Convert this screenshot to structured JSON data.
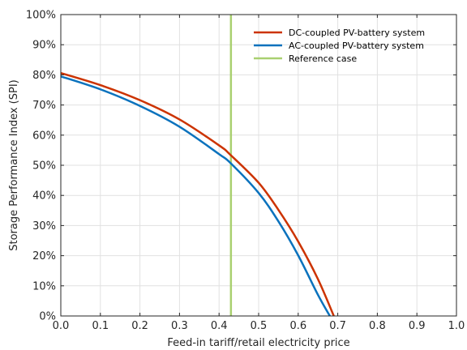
{
  "chart_data": {
    "type": "line",
    "xlabel": "Feed-in tariff/retail electricity price",
    "ylabel": "Storage Performance Index (SPI)",
    "xlim": [
      0,
      1
    ],
    "ylim": [
      0,
      1
    ],
    "x_ticks": [
      0,
      0.1,
      0.2,
      0.3,
      0.4,
      0.5,
      0.6,
      0.7,
      0.8,
      0.9,
      1.0
    ],
    "x_tick_labels": [
      "0.0",
      "0.1",
      "0.2",
      "0.3",
      "0.4",
      "0.5",
      "0.6",
      "0.7",
      "0.8",
      "0.9",
      "1.0"
    ],
    "y_ticks": [
      0,
      0.1,
      0.2,
      0.3,
      0.4,
      0.5,
      0.6,
      0.7,
      0.8,
      0.9,
      1.0
    ],
    "y_tick_labels": [
      "0%",
      "10%",
      "20%",
      "30%",
      "40%",
      "50%",
      "60%",
      "70%",
      "80%",
      "90%",
      "100%"
    ],
    "grid": true,
    "legend_position": "top-right",
    "series": [
      {
        "name": "DC-coupled PV-battery system",
        "color": "#cc3300",
        "x": [
          0.0,
          0.1,
          0.2,
          0.3,
          0.4,
          0.43,
          0.5,
          0.55,
          0.6,
          0.65,
          0.69
        ],
        "y": [
          0.806,
          0.766,
          0.716,
          0.652,
          0.566,
          0.533,
          0.442,
          0.352,
          0.247,
          0.122,
          0.0
        ]
      },
      {
        "name": "AC-coupled PV-battery system",
        "color": "#0b72bd",
        "x": [
          0.0,
          0.1,
          0.2,
          0.3,
          0.4,
          0.43,
          0.5,
          0.55,
          0.6,
          0.65,
          0.68
        ],
        "y": [
          0.795,
          0.752,
          0.697,
          0.628,
          0.537,
          0.506,
          0.408,
          0.314,
          0.201,
          0.07,
          0.0
        ]
      },
      {
        "name": "Reference case",
        "color": "#a9d070",
        "x": [
          0.43,
          0.43
        ],
        "y": [
          0,
          1
        ]
      }
    ]
  }
}
